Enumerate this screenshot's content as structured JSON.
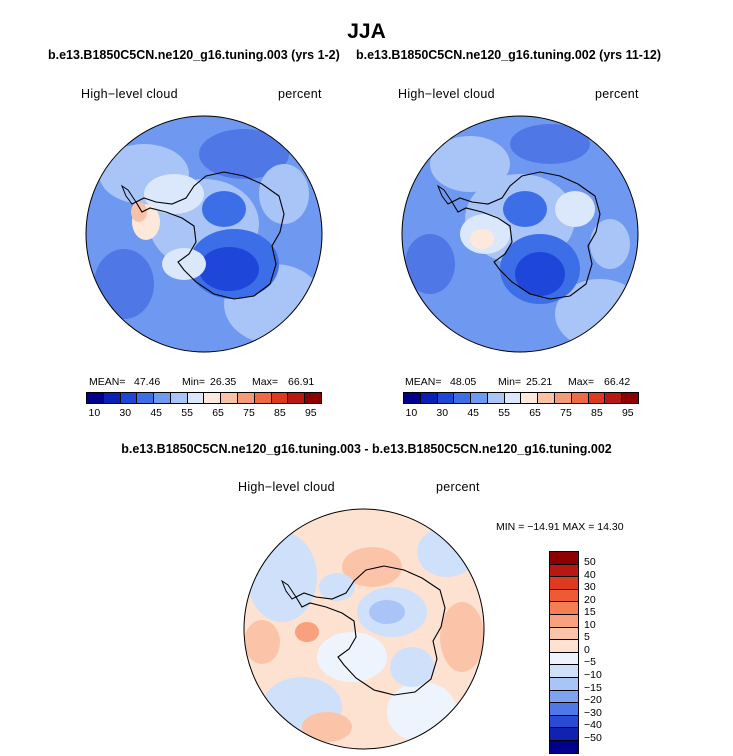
{
  "title": "JJA",
  "panels": [
    {
      "run": "b.e13.B1850C5CN.ne120_g16.tuning.003 (yrs 1-2)",
      "variable": "High−level cloud",
      "units": "percent",
      "mean_label": "MEAN=",
      "mean": "47.46",
      "min_label": "Min=",
      "min": "26.35",
      "max_label": "Max=",
      "max": "66.91"
    },
    {
      "run": "b.e13.B1850C5CN.ne120_g16.tuning.002 (yrs 11-12)",
      "variable": "High−level cloud",
      "units": "percent",
      "mean_label": "MEAN=",
      "mean": "48.05",
      "min_label": "Min=",
      "min": "25.21",
      "max_label": "Max=",
      "max": "66.42"
    }
  ],
  "abs_colorbar": {
    "ticks": [
      "10",
      "30",
      "45",
      "55",
      "65",
      "75",
      "85",
      "95"
    ],
    "colors": [
      "#00008c",
      "#0a1fb8",
      "#1e46d8",
      "#3c6ee8",
      "#6f98f0",
      "#a9c4f6",
      "#dbe8fb",
      "#fde8db",
      "#f9c2a6",
      "#f59a77",
      "#ee6a44",
      "#dd3a1f",
      "#b81811",
      "#8c0000"
    ]
  },
  "difference": {
    "title": "b.e13.B1850C5CN.ne120_g16.tuning.003 - b.e13.B1850C5CN.ne120_g16.tuning.002",
    "variable": "High−level cloud",
    "units": "percent",
    "stats": "MIN = −14.91  MAX =  14.30",
    "colorbar_ticks": [
      "50",
      "40",
      "30",
      "20",
      "15",
      "10",
      "5",
      "0",
      "−5",
      "−10",
      "−15",
      "−20",
      "−30",
      "−40",
      "−50"
    ],
    "colorbar_colors": [
      "#8c0000",
      "#b81811",
      "#dd3a1f",
      "#ee5a34",
      "#f57e55",
      "#f9a07e",
      "#fbc4a8",
      "#fde2d2",
      "#eef4fd",
      "#cfe0fa",
      "#a9c4f6",
      "#7fa3f0",
      "#4f78e6",
      "#2a4ad6",
      "#0f22b0",
      "#00008c"
    ]
  }
}
